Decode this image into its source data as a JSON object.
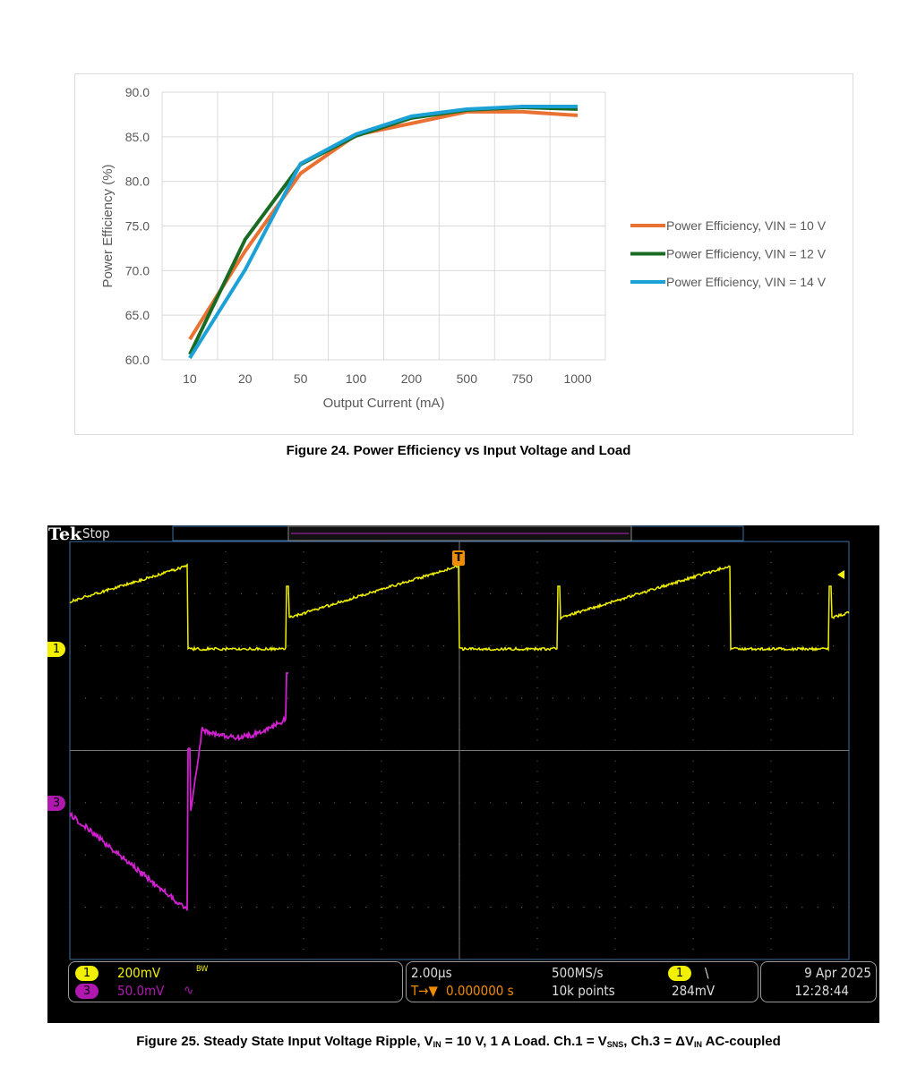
{
  "chart_data": {
    "type": "line",
    "title": "",
    "xlabel": "Output Current (mA)",
    "ylabel": "Power Efficiency (%)",
    "categories": [
      "10",
      "20",
      "50",
      "100",
      "200",
      "500",
      "750",
      "1000"
    ],
    "ylim": [
      60,
      90
    ],
    "yticks": [
      "60.0",
      "65.0",
      "70.0",
      "75.0",
      "80.0",
      "85.0",
      "90.0"
    ],
    "grid": true,
    "legend": "right",
    "series": [
      {
        "name": "Power Efficiency, VIN = 10 V",
        "color": "#e97132",
        "values": [
          62.3,
          72.2,
          80.9,
          85.2,
          86.5,
          87.8,
          87.8,
          87.4
        ]
      },
      {
        "name": "Power Efficiency, VIN = 12 V",
        "color": "#196b24",
        "values": [
          60.6,
          73.5,
          81.9,
          85.1,
          87.1,
          88.0,
          88.3,
          88.1
        ]
      },
      {
        "name": "Power Efficiency, VIN = 14 V",
        "color": "#1ba1d6",
        "values": [
          60.2,
          70.1,
          82.0,
          85.3,
          87.3,
          88.1,
          88.4,
          88.4
        ]
      }
    ]
  },
  "figure24_caption": "Figure 24. Power Efficiency vs Input Voltage and Load",
  "scope": {
    "brand": "Tek",
    "state": "Stop",
    "trigger_marker": "T",
    "ch1_marker": "1",
    "ch3_marker": "3",
    "ch1": {
      "num": "1",
      "scale": "200mV",
      "bw": "BW",
      "color": "#f0f000"
    },
    "ch3": {
      "num": "3",
      "scale": "50.0mV",
      "coupling": "∿",
      "color": "#d020d0"
    },
    "timebase": "2.00µs",
    "trigger_pos": "0.000000 s",
    "trigger_prefix": "T→▼",
    "sample_rate": "500MS/s",
    "record": "10k points",
    "trig_src": "1",
    "trig_slope": "\\",
    "trig_level": "284mV",
    "date": "9 Apr  2025",
    "time": "12:28:44"
  },
  "figure25_caption": {
    "a": "Figure 25. Steady State Input Voltage Ripple, V",
    "a_sub": "IN",
    "b": " = 10 V, 1 A Load. Ch.1 = V",
    "b_sub": "SNS",
    "c": ", Ch.3 = ΔV",
    "c_sub": "IN",
    "d": " AC-coupled"
  }
}
